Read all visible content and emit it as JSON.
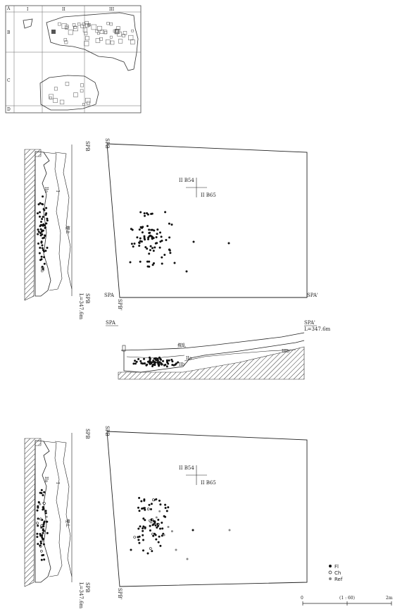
{
  "key_map": {
    "col_labels": [
      "I",
      "II",
      "III"
    ],
    "row_labels": [
      "A",
      "B",
      "C",
      "D"
    ]
  },
  "section_b": {
    "top_label": "SPB",
    "bottom_label": "SPB",
    "elevation": "L=347.6m",
    "layers": [
      "I",
      "IIa",
      "IIb",
      "IIIb"
    ],
    "fill_label": "埋土"
  },
  "plan_upper": {
    "corner_top_left": "SPB",
    "corner_bottom_left": "SPA",
    "corner_bottom_left2": "SPB'",
    "corner_bottom_right": "SPA'",
    "grid_label_1": "II B54",
    "grid_label_2": "II B65"
  },
  "section_a": {
    "left_label": "SPA",
    "right_label": "SPA'",
    "elevation": "L=347.6m",
    "layers": [
      "IIa",
      "IIb",
      "IIIb"
    ],
    "fill_label": "撹乱"
  },
  "section_b2": {
    "top_label": "SPB",
    "bottom_label": "SPB",
    "elevation": "L=347.6m",
    "layers": [
      "I",
      "IIa"
    ],
    "fill_label": "埋土"
  },
  "plan_lower": {
    "corner_top_left": "SPB",
    "corner_bottom_left": "SPB'",
    "grid_label_1": "II B54",
    "grid_label_2": "II B65"
  },
  "legend": {
    "items": [
      {
        "symbol": "filled-circle",
        "label": "Fl",
        "color": "#111111"
      },
      {
        "symbol": "open-circle",
        "label": "Ch",
        "color": "#111111"
      },
      {
        "symbol": "grey-circle",
        "label": "Ref",
        "color": "#888888"
      }
    ]
  },
  "scale": {
    "start": "0",
    "ratio": "(1 : 60)",
    "end": "2m"
  }
}
